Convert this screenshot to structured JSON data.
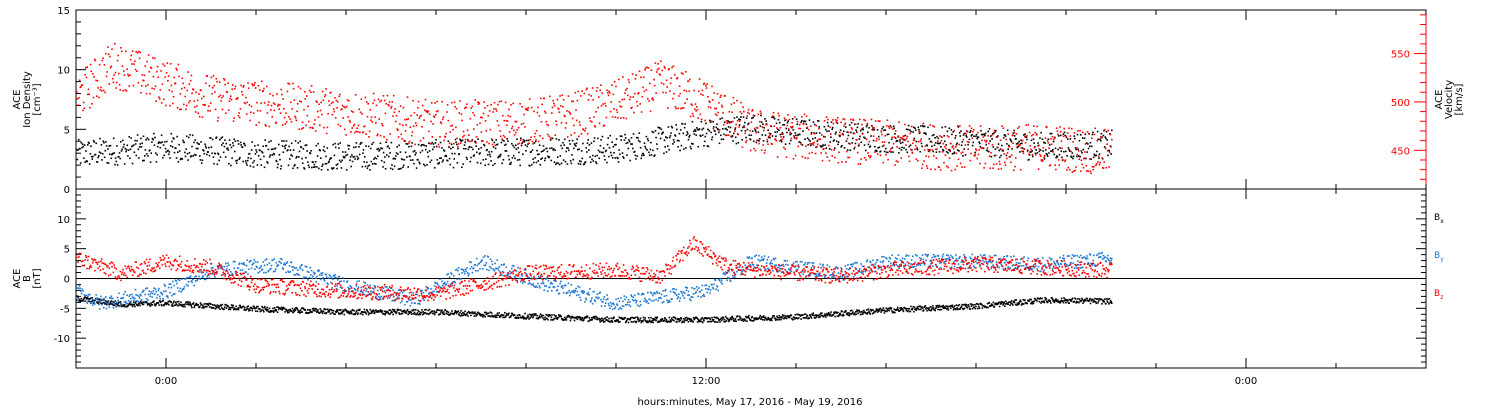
{
  "figure": {
    "xlabel": "hours:minutes, May 17, 2016 - May 19, 2016",
    "x_tick_labels": [
      "0:00",
      "12:00",
      "0:00"
    ]
  },
  "colors": {
    "black": "#000000",
    "blue": "#1e78d2",
    "red": "#ff0000"
  },
  "chart_data": [
    {
      "type": "scatter",
      "panel": "plasma",
      "ylabel_lines": [
        "ACE",
        "Ion Density",
        "[cm⁻³]"
      ],
      "ylim": [
        0,
        15
      ],
      "yticks": [
        0,
        5,
        10,
        15
      ],
      "y2label_lines": [
        "ACE",
        "Velocity",
        "[km/s]"
      ],
      "y2lim": [
        410,
        595
      ],
      "y2ticks": [
        450,
        500,
        550
      ],
      "x_range_hours": [
        -2,
        28
      ],
      "x_tick_hours": [
        0,
        12,
        24
      ],
      "series": [
        {
          "axis": "left",
          "color": "black",
          "anchors": [
            [
              -2,
              3.0
            ],
            [
              -1,
              3.3
            ],
            [
              0,
              3.6
            ],
            [
              2,
              3.0
            ],
            [
              4,
              2.8
            ],
            [
              6,
              3.0
            ],
            [
              8,
              3.2
            ],
            [
              10,
              3.4
            ],
            [
              12,
              4.8
            ],
            [
              13,
              5.2
            ],
            [
              14,
              4.8
            ],
            [
              16,
              4.3
            ],
            [
              18,
              4.0
            ],
            [
              19.5,
              3.6
            ],
            [
              21,
              3.8
            ]
          ],
          "spread": 1.2,
          "count": 1600
        },
        {
          "axis": "right",
          "color": "red",
          "anchors": [
            [
              -2,
              505
            ],
            [
              -1.2,
              540
            ],
            [
              0,
              520
            ],
            [
              1,
              505
            ],
            [
              2,
              500
            ],
            [
              4,
              490
            ],
            [
              6,
              478
            ],
            [
              8,
              480
            ],
            [
              9,
              487
            ],
            [
              10,
              500
            ],
            [
              11,
              520
            ],
            [
              12,
              500
            ],
            [
              13,
              470
            ],
            [
              14,
              465
            ],
            [
              16,
              458
            ],
            [
              18,
              452
            ],
            [
              19.5,
              455
            ],
            [
              21,
              448
            ]
          ],
          "spread": 24,
          "count": 1500
        }
      ]
    },
    {
      "type": "scatter",
      "panel": "magnetic-field",
      "ylabel_lines": [
        "ACE",
        "B",
        "[nT]"
      ],
      "ylim": [
        -15,
        15
      ],
      "yticks": [
        -10,
        -5,
        0,
        5,
        10
      ],
      "x_range_hours": [
        -2,
        28
      ],
      "x_tick_hours": [
        0,
        12,
        24
      ],
      "legend": [
        {
          "label": "B",
          "sub": "x",
          "color": "black"
        },
        {
          "label": "B",
          "sub": "y",
          "color": "blue"
        },
        {
          "label": "B",
          "sub": "z",
          "color": "red"
        }
      ],
      "series": [
        {
          "color": "black",
          "anchors": [
            [
              -2,
              -3.2
            ],
            [
              -1,
              -4.2
            ],
            [
              0,
              -4.0
            ],
            [
              2,
              -5.0
            ],
            [
              4,
              -5.5
            ],
            [
              6,
              -5.5
            ],
            [
              8,
              -6.2
            ],
            [
              10,
              -6.8
            ],
            [
              12,
              -6.8
            ],
            [
              14,
              -6.3
            ],
            [
              16,
              -5.2
            ],
            [
              18,
              -4.5
            ],
            [
              19.5,
              -3.5
            ],
            [
              21,
              -3.7
            ]
          ],
          "spread": 0.45,
          "count": 1800
        },
        {
          "color": "blue",
          "anchors": [
            [
              -2,
              -2.0
            ],
            [
              -1.5,
              -4.0
            ],
            [
              0,
              -2.0
            ],
            [
              1,
              1.5
            ],
            [
              2.5,
              2.5
            ],
            [
              4,
              -1.0
            ],
            [
              5.5,
              -3.5
            ],
            [
              7,
              3.0
            ],
            [
              8.5,
              -1.0
            ],
            [
              10,
              -4.0
            ],
            [
              11,
              -3.0
            ],
            [
              12,
              -2.0
            ],
            [
              13,
              3.0
            ],
            [
              14,
              2.0
            ],
            [
              15,
              1.0
            ],
            [
              16,
              3.0
            ],
            [
              18,
              3.0
            ],
            [
              19.5,
              2.5
            ],
            [
              21,
              3.5
            ]
          ],
          "spread": 1.2,
          "count": 1500
        },
        {
          "color": "red",
          "anchors": [
            [
              -2,
              3.5
            ],
            [
              -1,
              1.0
            ],
            [
              0,
              3.0
            ],
            [
              1,
              2.0
            ],
            [
              2,
              -1.0
            ],
            [
              4,
              -2.0
            ],
            [
              6,
              -2.5
            ],
            [
              8,
              1.0
            ],
            [
              10,
              1.5
            ],
            [
              11,
              0.5
            ],
            [
              11.7,
              6.0
            ],
            [
              12.5,
              2.0
            ],
            [
              14,
              1.0
            ],
            [
              15,
              0.5
            ],
            [
              16,
              1.5
            ],
            [
              18,
              2.5
            ],
            [
              19.5,
              2.0
            ],
            [
              21,
              1.5
            ]
          ],
          "spread": 1.3,
          "count": 1500
        }
      ]
    }
  ]
}
